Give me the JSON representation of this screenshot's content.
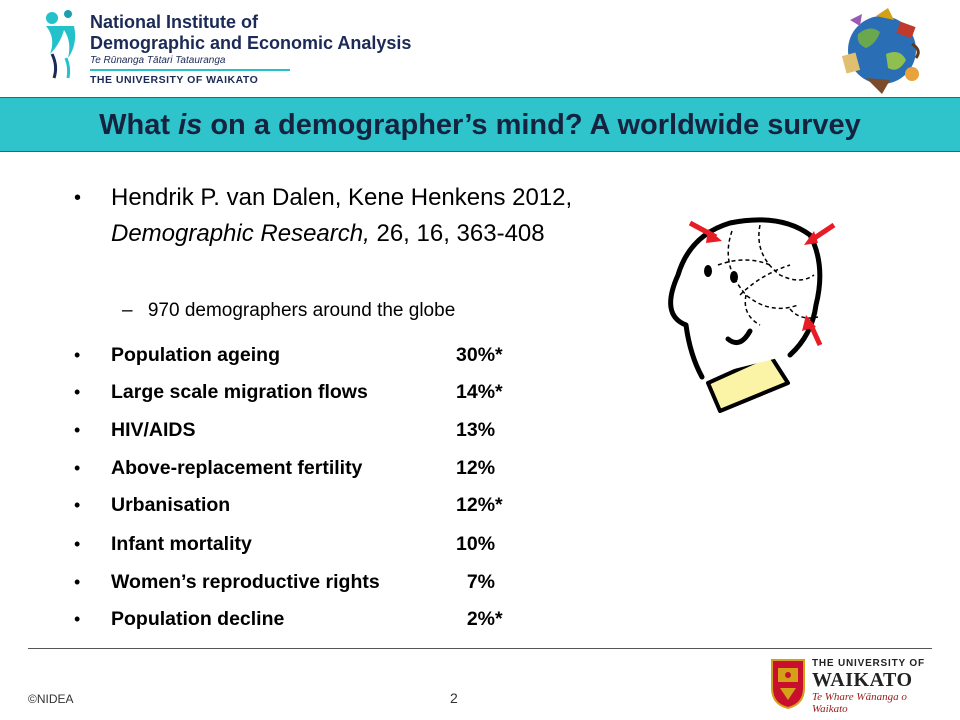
{
  "header": {
    "logo_line1": "National Institute of",
    "logo_line2": "Demographic and Economic Analysis",
    "logo_tagline": "Te Rūnanga Tātari Tatauranga",
    "logo_university": "THE UNIVERSITY OF WAIKATO"
  },
  "title": {
    "part1": "What ",
    "emphasis": "is",
    "part2": " on a demographer’s mind? A worldwide survey"
  },
  "citation": {
    "authors": "Hendrik P. van Dalen, Kene Henkens 2012, ",
    "journal": "Demographic Research,",
    "details": " 26, 16, 363-408"
  },
  "sub_bullet": "970 demographers around the globe",
  "sub_dash": "–",
  "bullet_char": "•",
  "items": [
    {
      "label": "Population ageing",
      "value": "30%*"
    },
    {
      "label": "Large scale migration flows",
      "value": "14%*"
    },
    {
      "label": "HIV/AIDS",
      "value": "13%"
    },
    {
      "label": "Above-replacement fertility",
      "value": "12%"
    },
    {
      "label": "Urbanisation",
      "value": "12%*"
    },
    {
      "label": "Infant mortality",
      "value": "10%"
    },
    {
      "label": "Women’s reproductive rights",
      "value": "  7%"
    },
    {
      "label": "Population decline",
      "value": "  2%*"
    }
  ],
  "footer": {
    "copyright": "©NIDEA",
    "page_number": "2",
    "uni_line1": "THE UNIVERSITY OF",
    "uni_line2": "WAIKATO",
    "uni_line3": "Te Whare Wānanga o Waikato"
  },
  "colors": {
    "title_bar": "#2fc3cc",
    "title_text": "#15233f",
    "arrows": "#e81c24"
  },
  "icons": [
    "nidea-logo-icon",
    "globe-collage-icon",
    "thinking-head-icon",
    "waikato-crest-icon"
  ]
}
